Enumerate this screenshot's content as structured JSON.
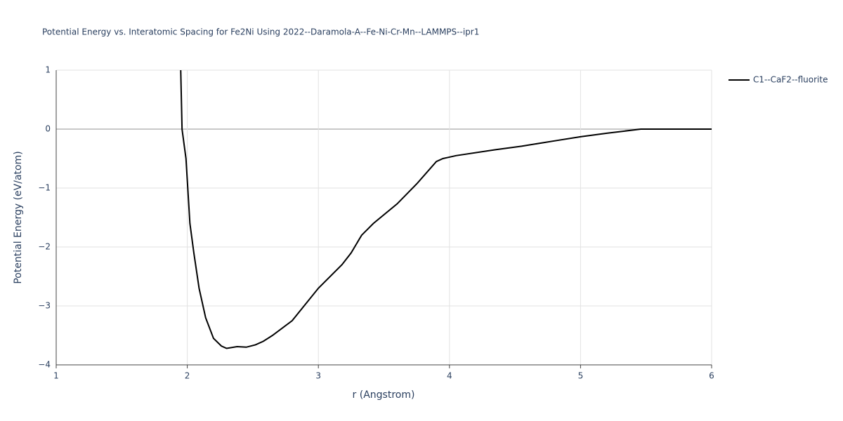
{
  "chart_data": {
    "type": "line",
    "title": "Potential Energy vs. Interatomic Spacing for Fe2Ni Using 2022--Daramola-A--Fe-Ni-Cr-Mn--LAMMPS--ipr1",
    "x_label": "r (Angstrom)",
    "y_label": "Potential Energy (eV/atom)",
    "xlim": [
      1,
      6
    ],
    "ylim": [
      -4,
      1
    ],
    "xticks": [
      1,
      2,
      3,
      4,
      5,
      6
    ],
    "yticks": [
      {
        "value": -4,
        "label": "−4"
      },
      {
        "value": -3,
        "label": "−3"
      },
      {
        "value": -2,
        "label": "−2"
      },
      {
        "value": -1,
        "label": "−1"
      },
      0,
      1
    ],
    "grid": true,
    "legend": "top-right",
    "x": [
      1.95,
      1.96,
      1.99,
      2.02,
      2.05,
      2.09,
      2.14,
      2.2,
      2.26,
      2.3,
      2.38,
      2.45,
      2.52,
      2.58,
      2.65,
      2.8,
      3.0,
      3.18,
      3.25,
      3.33,
      3.42,
      3.6,
      3.75,
      3.9,
      3.95,
      4.05,
      4.35,
      4.55,
      4.8,
      5.0,
      5.2,
      5.46,
      6.0
    ],
    "series": [
      {
        "name": "C1--CaF2--fluorite",
        "color": "#000000",
        "values": [
          1.0,
          0.0,
          -0.5,
          -1.6,
          -2.1,
          -2.7,
          -3.2,
          -3.55,
          -3.68,
          -3.72,
          -3.69,
          -3.7,
          -3.66,
          -3.6,
          -3.5,
          -3.25,
          -2.7,
          -2.3,
          -2.1,
          -1.8,
          -1.6,
          -1.27,
          -0.93,
          -0.55,
          -0.5,
          -0.45,
          -0.35,
          -0.29,
          -0.2,
          -0.13,
          -0.07,
          0.0,
          0.0
        ]
      }
    ]
  }
}
